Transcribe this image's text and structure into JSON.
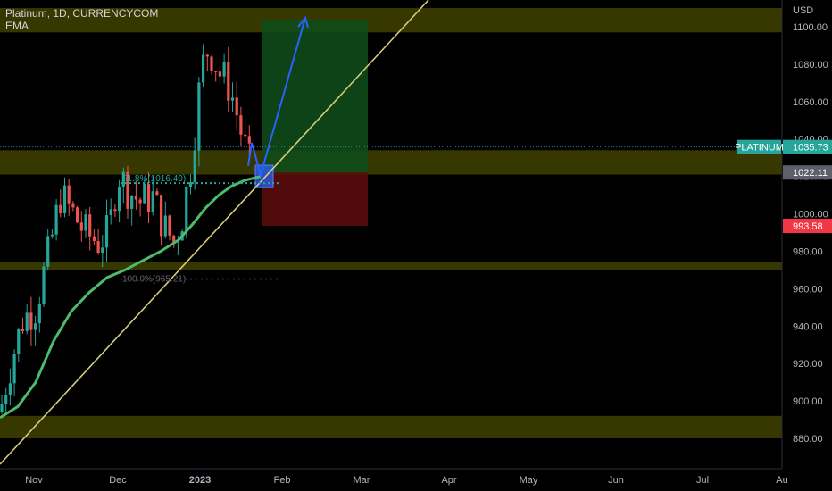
{
  "header": {
    "title": "Platinum, 1D, CURRENCYCOM",
    "indicator": "EMA"
  },
  "price_axis": {
    "currency": "USD",
    "tick_labels": [
      "1100.00",
      "1080.00",
      "1060.00",
      "1040.00",
      "1020.00",
      "1000.00",
      "980.00",
      "960.00",
      "940.00",
      "920.00",
      "900.00",
      "880.00"
    ]
  },
  "time_axis": {
    "labels": [
      "Nov",
      "Dec",
      "2023",
      "Feb",
      "Mar",
      "Apr",
      "May",
      "Jun",
      "Jul",
      "Au"
    ]
  },
  "tags": {
    "symbol_label": "PLATINUM",
    "last_price": "1035.73",
    "entry_price": "1022.11",
    "stop_price": "993.58"
  },
  "fib": {
    "level1": "61.8%(1016.40)",
    "level2": "100.0%(965.21)"
  },
  "colors": {
    "up": "#26a69a",
    "down": "#ef5350",
    "ema": "#4cbb6c",
    "trendline": "#d6cc7a",
    "zone": "#3a3a00",
    "target": "#0f4a1a",
    "stop": "#5a0c0c",
    "arrow": "#2962ff",
    "last_price_tag": "#26a69a",
    "stop_tag": "#f23645",
    "entry_tag": "#5d606b"
  },
  "chart_data": {
    "type": "candlestick",
    "symbol": "Platinum",
    "interval": "1D",
    "ylim": [
      868,
      1108
    ],
    "y_ticks": [
      880,
      900,
      920,
      940,
      960,
      980,
      1000,
      1020,
      1040,
      1060,
      1080,
      1100
    ],
    "last_price": 1035.73,
    "entry_price": 1022.11,
    "stop_price": 993.58,
    "support_resistance_zones": [
      [
        1097,
        1110
      ],
      [
        1021,
        1034
      ],
      [
        970,
        974
      ],
      [
        880,
        892
      ]
    ],
    "fib_levels": [
      {
        "label": "61.8%",
        "value": 1016.4
      },
      {
        "label": "100.0%",
        "value": 965.21
      }
    ]
  }
}
